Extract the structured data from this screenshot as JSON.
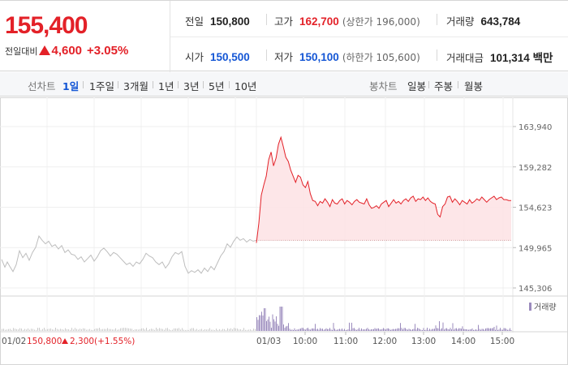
{
  "price": {
    "current": "155,400",
    "change_label": "전일대비",
    "change_amount": "4,600",
    "change_rate": "+3.05%"
  },
  "stats": {
    "prev_close": {
      "label": "전일",
      "value": "150,800"
    },
    "high": {
      "label": "고가",
      "value": "162,700",
      "limit": "(상한가 196,000)"
    },
    "volume": {
      "label": "거래량",
      "value": "643,784"
    },
    "open": {
      "label": "시가",
      "value": "150,500"
    },
    "low": {
      "label": "저가",
      "value": "150,100",
      "limit": "(하한가 105,600)"
    },
    "trade_value": {
      "label": "거래대금",
      "value": "101,314 백만"
    }
  },
  "toolbar": {
    "line_chart_label": "선차트",
    "periods": [
      "1일",
      "1주일",
      "3개월",
      "1년",
      "3년",
      "5년",
      "10년"
    ],
    "active_period": "1일",
    "candle_chart_label": "봉차트",
    "candles": [
      "일봉",
      "주봉",
      "월봉"
    ]
  },
  "colors": {
    "up": "#e32128",
    "down": "#1456d5",
    "prev_day_line": "#bdbdbd",
    "area_fill": "#fde2e4",
    "volume_bar": "#9b8bbd"
  },
  "chart_data": {
    "type": "line",
    "y_ticks": [
      "163,940",
      "159,282",
      "154,623",
      "149,965",
      "145,306"
    ],
    "ylim": [
      145306,
      163940
    ],
    "legend": "거래량",
    "prev_day": {
      "date": "01/02",
      "close": "150,800",
      "change": "2,300",
      "rate": "(+1.55%)",
      "keypoints": [
        [
          0,
          148600
        ],
        [
          4,
          147700
        ],
        [
          7,
          148300
        ],
        [
          10,
          147800
        ],
        [
          14,
          147200
        ],
        [
          18,
          148000
        ],
        [
          22,
          149600
        ],
        [
          26,
          148800
        ],
        [
          30,
          149300
        ],
        [
          34,
          148500
        ],
        [
          38,
          149400
        ],
        [
          42,
          150000
        ],
        [
          46,
          151300
        ],
        [
          50,
          150800
        ],
        [
          54,
          150400
        ],
        [
          58,
          150700
        ],
        [
          62,
          150100
        ],
        [
          66,
          150300
        ],
        [
          70,
          149800
        ],
        [
          74,
          150200
        ],
        [
          78,
          149400
        ],
        [
          82,
          149700
        ],
        [
          86,
          149200
        ],
        [
          90,
          149100
        ],
        [
          94,
          148600
        ],
        [
          98,
          148900
        ],
        [
          102,
          148300
        ],
        [
          106,
          148700
        ],
        [
          110,
          149100
        ],
        [
          114,
          148400
        ],
        [
          118,
          148900
        ],
        [
          122,
          149600
        ],
        [
          126,
          149900
        ],
        [
          130,
          149500
        ],
        [
          134,
          149000
        ],
        [
          138,
          149400
        ],
        [
          142,
          149200
        ],
        [
          146,
          148800
        ],
        [
          150,
          148400
        ],
        [
          154,
          148000
        ],
        [
          158,
          148200
        ],
        [
          162,
          147800
        ],
        [
          166,
          148300
        ],
        [
          170,
          148100
        ],
        [
          174,
          148600
        ],
        [
          178,
          149300
        ],
        [
          182,
          149000
        ],
        [
          186,
          148800
        ],
        [
          190,
          148300
        ],
        [
          194,
          148000
        ],
        [
          198,
          148300
        ],
        [
          202,
          147600
        ],
        [
          206,
          148100
        ],
        [
          210,
          148900
        ],
        [
          214,
          149400
        ],
        [
          218,
          149200
        ],
        [
          222,
          149500
        ],
        [
          226,
          147800
        ],
        [
          230,
          147000
        ],
        [
          234,
          147300
        ],
        [
          238,
          147100
        ],
        [
          242,
          147400
        ],
        [
          246,
          147000
        ],
        [
          250,
          147600
        ],
        [
          254,
          147200
        ],
        [
          258,
          147800
        ],
        [
          262,
          147400
        ],
        [
          266,
          148200
        ],
        [
          270,
          149000
        ],
        [
          274,
          149500
        ],
        [
          278,
          150400
        ],
        [
          282,
          150000
        ],
        [
          286,
          150700
        ],
        [
          290,
          151200
        ],
        [
          294,
          150800
        ],
        [
          298,
          151000
        ],
        [
          302,
          150600
        ],
        [
          306,
          150900
        ],
        [
          310,
          150700
        ],
        [
          314,
          150800
        ]
      ]
    },
    "today": {
      "date": "01/03",
      "base": 150800,
      "x_ticks": [
        "10:00",
        "11:00",
        "12:00",
        "13:00",
        "14:00",
        "15:00"
      ],
      "keypoints": [
        [
          0,
          150500
        ],
        [
          3,
          152800
        ],
        [
          6,
          156000
        ],
        [
          9,
          157200
        ],
        [
          12,
          158200
        ],
        [
          15,
          160100
        ],
        [
          18,
          161000
        ],
        [
          21,
          159400
        ],
        [
          24,
          160300
        ],
        [
          27,
          161900
        ],
        [
          30,
          162700
        ],
        [
          33,
          161600
        ],
        [
          36,
          160400
        ],
        [
          39,
          159900
        ],
        [
          42,
          158900
        ],
        [
          45,
          158200
        ],
        [
          48,
          157500
        ],
        [
          51,
          158300
        ],
        [
          54,
          158100
        ],
        [
          57,
          157200
        ],
        [
          60,
          156900
        ],
        [
          63,
          157600
        ],
        [
          66,
          156200
        ],
        [
          69,
          155400
        ],
        [
          72,
          155300
        ],
        [
          75,
          154800
        ],
        [
          78,
          155300
        ],
        [
          81,
          155100
        ],
        [
          84,
          155600
        ],
        [
          87,
          155200
        ],
        [
          90,
          154700
        ],
        [
          93,
          155500
        ],
        [
          96,
          155100
        ],
        [
          99,
          155000
        ],
        [
          102,
          155400
        ],
        [
          105,
          155600
        ],
        [
          108,
          155000
        ],
        [
          111,
          155400
        ],
        [
          114,
          155200
        ],
        [
          117,
          154900
        ],
        [
          120,
          155300
        ],
        [
          123,
          155500
        ],
        [
          126,
          155200
        ],
        [
          129,
          155100
        ],
        [
          132,
          155000
        ],
        [
          135,
          155600
        ],
        [
          138,
          154900
        ],
        [
          141,
          154500
        ],
        [
          144,
          154600
        ],
        [
          147,
          154800
        ],
        [
          150,
          154500
        ],
        [
          153,
          155000
        ],
        [
          156,
          155200
        ],
        [
          159,
          155400
        ],
        [
          162,
          154700
        ],
        [
          165,
          155100
        ],
        [
          168,
          155500
        ],
        [
          171,
          155100
        ],
        [
          174,
          155300
        ],
        [
          177,
          155000
        ],
        [
          180,
          155400
        ],
        [
          183,
          155600
        ],
        [
          186,
          155300
        ],
        [
          189,
          155700
        ],
        [
          192,
          155900
        ],
        [
          195,
          155300
        ],
        [
          198,
          155600
        ],
        [
          201,
          155500
        ],
        [
          204,
          155800
        ],
        [
          207,
          155400
        ],
        [
          210,
          155700
        ],
        [
          213,
          155300
        ],
        [
          216,
          155100
        ],
        [
          219,
          155000
        ],
        [
          222,
          153800
        ],
        [
          225,
          153500
        ],
        [
          228,
          154700
        ],
        [
          231,
          155000
        ],
        [
          234,
          155800
        ],
        [
          237,
          155900
        ],
        [
          240,
          155200
        ],
        [
          243,
          155600
        ],
        [
          246,
          155300
        ],
        [
          249,
          154900
        ],
        [
          252,
          155400
        ],
        [
          255,
          155200
        ],
        [
          258,
          155000
        ],
        [
          261,
          155500
        ],
        [
          264,
          155100
        ],
        [
          267,
          155300
        ],
        [
          270,
          155600
        ],
        [
          273,
          155400
        ],
        [
          276,
          155800
        ],
        [
          279,
          155500
        ],
        [
          282,
          155200
        ],
        [
          285,
          155500
        ],
        [
          288,
          155700
        ],
        [
          291,
          155900
        ],
        [
          294,
          155500
        ],
        [
          297,
          155700
        ],
        [
          300,
          155800
        ],
        [
          303,
          155500
        ],
        [
          306,
          155500
        ],
        [
          309,
          155400
        ],
        [
          312,
          155400
        ]
      ]
    }
  }
}
